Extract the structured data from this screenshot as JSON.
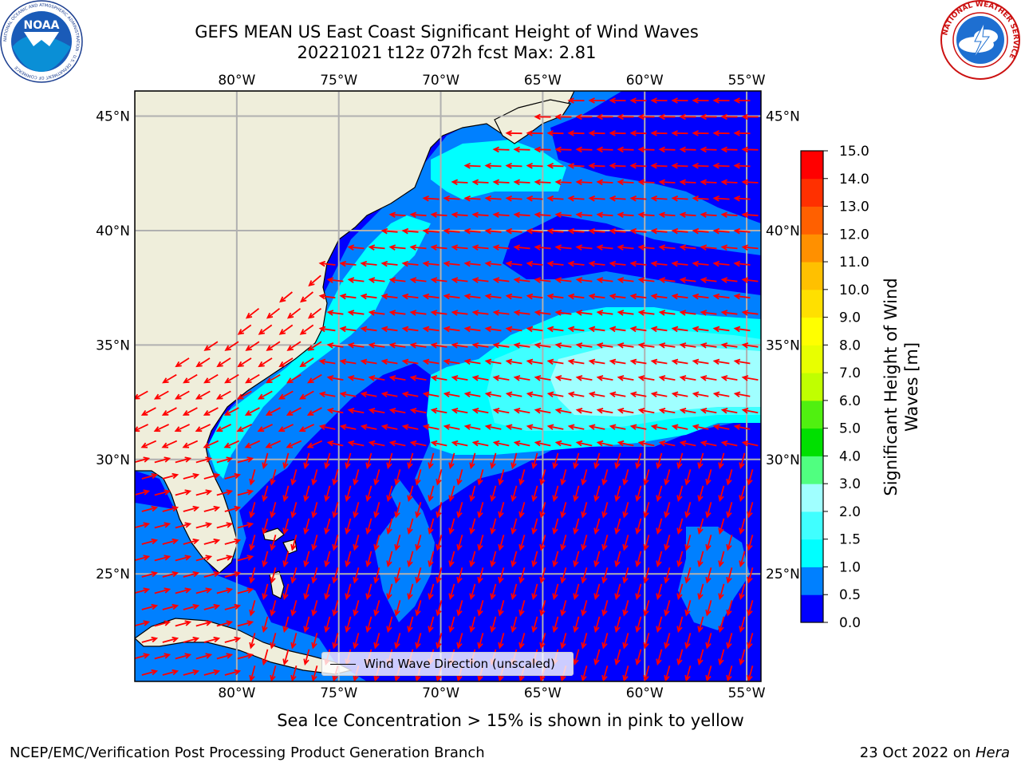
{
  "title": {
    "line1": "GEFS MEAN US East Coast Significant Height of Wind Waves",
    "line2": "20221021 t12z 072h fcst   Max: 2.81"
  },
  "map": {
    "lon_range": [
      -85,
      -54.3
    ],
    "lat_range": [
      20.3,
      46.1
    ],
    "lon_ticks": [
      "80°W",
      "75°W",
      "70°W",
      "65°W",
      "60°W",
      "55°W"
    ],
    "lon_tick_values": [
      -80,
      -75,
      -70,
      -65,
      -60,
      -55
    ],
    "lat_ticks": [
      "45°N",
      "40°N",
      "35°N",
      "30°N",
      "25°N"
    ],
    "lat_tick_values": [
      45,
      40,
      35,
      30,
      25
    ],
    "land_color": "#efeedb",
    "ocean_base_color": "#0000ff",
    "gridlines": true,
    "arrow_color": "#ff0000"
  },
  "legend": {
    "label": "Wind Wave Direction (unscaled)",
    "placement": "lower-center"
  },
  "colorbar": {
    "label": "Significant Height of Wind Waves [m]",
    "label_line1": "Significant Height of Wind",
    "label_line2": "Waves [m]",
    "levels": [
      0.0,
      0.5,
      1.0,
      1.5,
      2.0,
      3.0,
      4.0,
      5.0,
      6.0,
      7.0,
      8.0,
      9.0,
      10.0,
      11.0,
      12.0,
      13.0,
      14.0,
      15.0
    ],
    "tick_labels": [
      "0.0",
      "0.5",
      "1.0",
      "1.5",
      "2.0",
      "3.0",
      "4.0",
      "5.0",
      "6.0",
      "7.0",
      "8.0",
      "9.0",
      "10.0",
      "11.0",
      "12.0",
      "13.0",
      "14.0",
      "15.0"
    ],
    "colors": [
      "#0000ff",
      "#0080ff",
      "#00ffff",
      "#40ffff",
      "#a0ffff",
      "#50ff80",
      "#00e000",
      "#50f010",
      "#c0ff00",
      "#e8ff00",
      "#ffff00",
      "#ffe000",
      "#ffc000",
      "#ff9000",
      "#ff6000",
      "#ff3000",
      "#ff0000"
    ]
  },
  "ice_note": "Sea Ice Concentration > 15% is shown in pink to yellow",
  "footer": {
    "left": "NCEP/EMC/Verification Post Processing Product Generation Branch",
    "right_date": "23 Oct 2022 on ",
    "right_machine": "Hera"
  },
  "logos": {
    "noaa_text": "NOAA",
    "noaa_ring": "NATIONAL OCEANIC AND ATMOSPHERIC ADMINISTRATION · U.S. DEPARTMENT OF COMMERCE",
    "nws_ring": "NATIONAL WEATHER SERVICE"
  }
}
